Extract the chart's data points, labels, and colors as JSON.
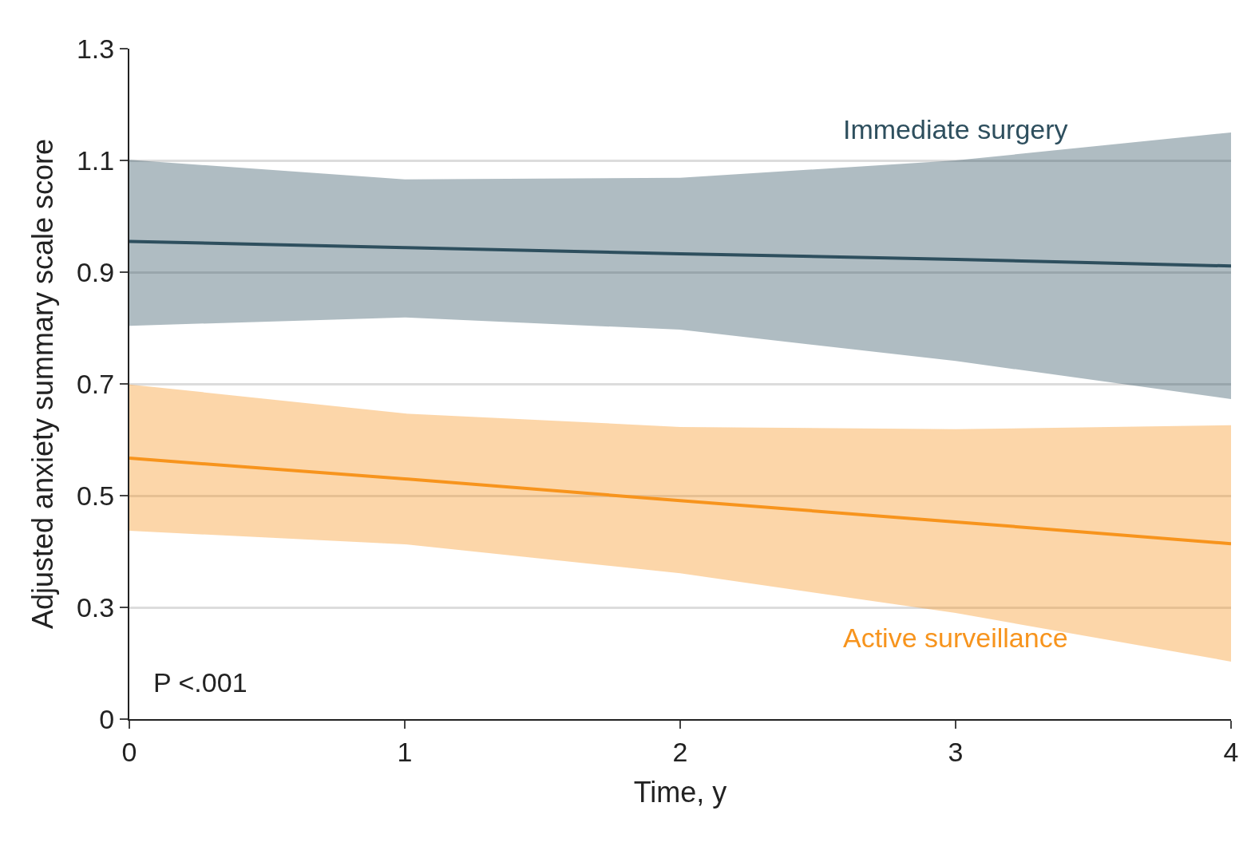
{
  "chart_data": {
    "type": "line",
    "xlabel": "Time, y",
    "ylabel": "Adjusted anxiety summary scale score",
    "x": [
      0,
      1,
      2,
      3,
      4
    ],
    "series": [
      {
        "name": "Immediate surgery",
        "color": "#2e4f5e",
        "values": [
          0.955,
          0.944,
          0.933,
          0.923,
          0.911
        ],
        "lower": [
          0.804,
          0.819,
          0.797,
          0.741,
          0.673
        ],
        "upper": [
          1.101,
          1.066,
          1.069,
          1.1,
          1.15
        ]
      },
      {
        "name": "Active surveillance",
        "color": "#f7941d",
        "values": [
          0.567,
          0.53,
          0.491,
          0.453,
          0.414
        ],
        "lower": [
          0.437,
          0.413,
          0.361,
          0.29,
          0.203
        ],
        "upper": [
          0.699,
          0.647,
          0.623,
          0.619,
          0.626
        ]
      }
    ],
    "xlim": [
      0,
      4
    ],
    "xticks": [
      0,
      1,
      2,
      3,
      4
    ],
    "ylim": [
      0.1,
      1.3
    ],
    "yticks": [
      {
        "value": 0.1,
        "label": "0"
      },
      0.3,
      0.5,
      0.7,
      0.9,
      1.1,
      1.3
    ],
    "grid": "y",
    "legend": false,
    "marker": "none",
    "line_style": "solid",
    "annotations": [
      "P <.001"
    ]
  }
}
